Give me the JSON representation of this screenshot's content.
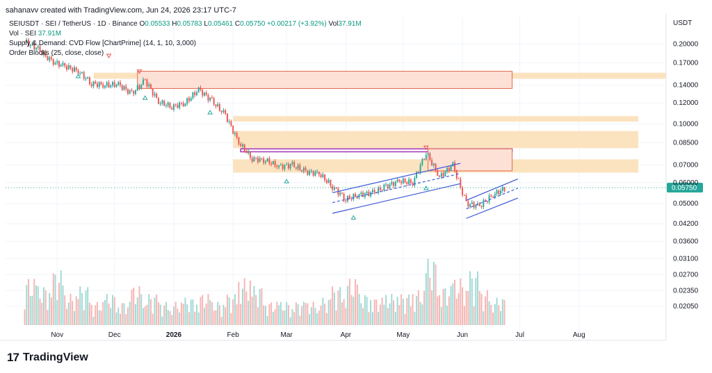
{
  "credit": "sahanavv created with TradingView.com, Jun 24, 2026 23:17 UTC-7",
  "legend": {
    "symbol": "SEIUSDT · SEI / TetherUS · 1D · Binance",
    "ohlc": {
      "o_label": "O",
      "o": "0.05533",
      "h_label": "H",
      "h": "0.05783",
      "l_label": "L",
      "l": "0.05461",
      "c_label": "C",
      "c": "0.05750",
      "change": "+0.00217 (+3.92%)",
      "vol_label": "Vol",
      "vol": "37.91M"
    },
    "vol_row": {
      "label": "Vol · SEI",
      "value": "37.91M"
    },
    "indicator1": "Supply & Demand: CVD Flow [ChartPrime] (14, 1, 10, 3,000)",
    "indicator2": "Order Blocks (25, close, close)"
  },
  "axis": {
    "currency": "USDT",
    "price_ticks": [
      "0.20000",
      "0.17000",
      "0.14000",
      "0.12000",
      "0.10000",
      "0.08500",
      "0.07000",
      "0.06000",
      "0.05000",
      "0.04200",
      "0.03600",
      "0.03100",
      "0.02700",
      "0.02350",
      "0.02050"
    ],
    "current_price": "0.05750",
    "time_ticks": [
      "Nov",
      "Dec",
      "2026",
      "Feb",
      "Mar",
      "Apr",
      "May",
      "Jun",
      "Jul",
      "Aug"
    ]
  },
  "colors": {
    "up": "#26a69a",
    "down": "#ef5350",
    "vol_up": "#9fd9d3",
    "vol_down": "#f5b4b2",
    "zone": "#fbe3c0",
    "supply": "#f7a27a",
    "channel": "#4a63d8",
    "ob": "#a83bb5"
  },
  "brand": "TradingView",
  "chart_data": {
    "type": "candlestick",
    "title": "SEIUSDT · SEI / TetherUS · 1D · Binance",
    "xlabel": "",
    "ylabel": "USDT",
    "scale": "log",
    "ylim": [
      0.0185,
      0.225
    ],
    "x_ticks": [
      "Nov",
      "Dec",
      "2026",
      "Feb",
      "Mar",
      "Apr",
      "May",
      "Jun",
      "Jul",
      "Aug"
    ],
    "y_ticks": [
      0.2,
      0.17,
      0.14,
      0.12,
      0.1,
      0.085,
      0.07,
      0.06,
      0.05,
      0.042,
      0.036,
      0.031,
      0.027,
      0.0235,
      0.0205
    ],
    "close_series": [
      {
        "date": "2025-10-15",
        "value": 0.205
      },
      {
        "date": "2025-10-22",
        "value": 0.192
      },
      {
        "date": "2025-10-29",
        "value": 0.172
      },
      {
        "date": "2025-11-05",
        "value": 0.165
      },
      {
        "date": "2025-11-12",
        "value": 0.158
      },
      {
        "date": "2025-11-19",
        "value": 0.142
      },
      {
        "date": "2025-11-26",
        "value": 0.14
      },
      {
        "date": "2025-12-03",
        "value": 0.141
      },
      {
        "date": "2025-12-10",
        "value": 0.13
      },
      {
        "date": "2025-12-17",
        "value": 0.146
      },
      {
        "date": "2025-12-24",
        "value": 0.121
      },
      {
        "date": "2025-12-31",
        "value": 0.116
      },
      {
        "date": "2026-01-07",
        "value": 0.12
      },
      {
        "date": "2026-01-14",
        "value": 0.135
      },
      {
        "date": "2026-01-21",
        "value": 0.122
      },
      {
        "date": "2026-01-28",
        "value": 0.108
      },
      {
        "date": "2026-02-04",
        "value": 0.085
      },
      {
        "date": "2026-02-11",
        "value": 0.074
      },
      {
        "date": "2026-02-18",
        "value": 0.073
      },
      {
        "date": "2026-02-25",
        "value": 0.069
      },
      {
        "date": "2026-03-04",
        "value": 0.07
      },
      {
        "date": "2026-03-11",
        "value": 0.066
      },
      {
        "date": "2026-03-18",
        "value": 0.065
      },
      {
        "date": "2026-03-25",
        "value": 0.058
      },
      {
        "date": "2026-04-01",
        "value": 0.052
      },
      {
        "date": "2026-04-08",
        "value": 0.054
      },
      {
        "date": "2026-04-15",
        "value": 0.055
      },
      {
        "date": "2026-04-22",
        "value": 0.058
      },
      {
        "date": "2026-04-29",
        "value": 0.061
      },
      {
        "date": "2026-05-06",
        "value": 0.06
      },
      {
        "date": "2026-05-13",
        "value": 0.078
      },
      {
        "date": "2026-05-20",
        "value": 0.063
      },
      {
        "date": "2026-05-27",
        "value": 0.07
      },
      {
        "date": "2026-06-03",
        "value": 0.05
      },
      {
        "date": "2026-06-10",
        "value": 0.049
      },
      {
        "date": "2026-06-17",
        "value": 0.054
      },
      {
        "date": "2026-06-24",
        "value": 0.0575
      }
    ],
    "volume_relative": [
      0.6,
      0.5,
      0.7,
      0.4,
      0.5,
      0.3,
      0.4,
      0.3,
      0.5,
      0.4,
      0.3,
      0.3,
      0.35,
      0.4,
      0.3,
      0.4,
      0.6,
      0.5,
      0.3,
      0.3,
      0.3,
      0.3,
      0.35,
      0.5,
      0.6,
      0.4,
      0.35,
      0.4,
      0.4,
      0.45,
      0.85,
      0.5,
      0.6,
      0.7,
      0.45,
      0.35,
      0.3
    ],
    "zones": [
      {
        "type": "demand-zone",
        "low": 0.148,
        "high": 0.156
      },
      {
        "type": "supply-zone",
        "low": 0.102,
        "high": 0.107
      },
      {
        "type": "supply-zone",
        "low": 0.081,
        "high": 0.094
      },
      {
        "type": "supply-zone",
        "low": 0.0655,
        "high": 0.0735
      },
      {
        "type": "order-block",
        "low": 0.0785,
        "high": 0.0805
      },
      {
        "type": "supply-profile",
        "low": 0.136,
        "high": 0.158
      },
      {
        "type": "supply-profile",
        "low": 0.0665,
        "high": 0.0805
      }
    ]
  }
}
